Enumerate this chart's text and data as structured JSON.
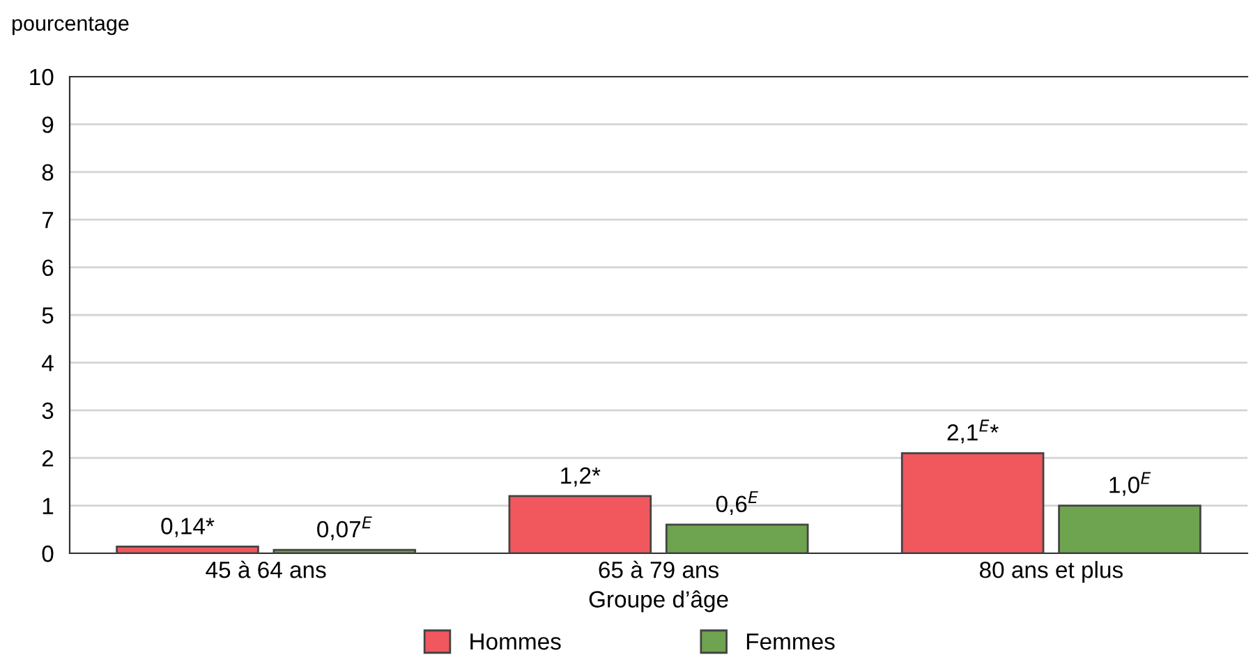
{
  "chart_data": {
    "type": "bar",
    "ylabel": "pourcentage",
    "xlabel": "Groupe d’âge",
    "categories": [
      "45 à 64 ans",
      "65 à 79 ans",
      "80 ans et plus"
    ],
    "series": [
      {
        "name": "Hommes",
        "color": "#f0585e",
        "values": [
          0.14,
          1.2,
          2.1
        ],
        "value_labels": [
          "0,14*",
          "1,2*",
          "2,1$^{E}$*"
        ]
      },
      {
        "name": "Femmes",
        "color": "#6ea350",
        "values": [
          0.07,
          0.6,
          1.0
        ],
        "value_labels": [
          "0,07$^{E}$",
          "0,6$^{E}$",
          "1,0$^{E}$"
        ]
      }
    ],
    "ylim": [
      0,
      10
    ],
    "yticks": [
      0,
      1,
      2,
      3,
      4,
      5,
      6,
      7,
      8,
      9,
      10
    ],
    "grid": "y",
    "legend": "bottom"
  }
}
